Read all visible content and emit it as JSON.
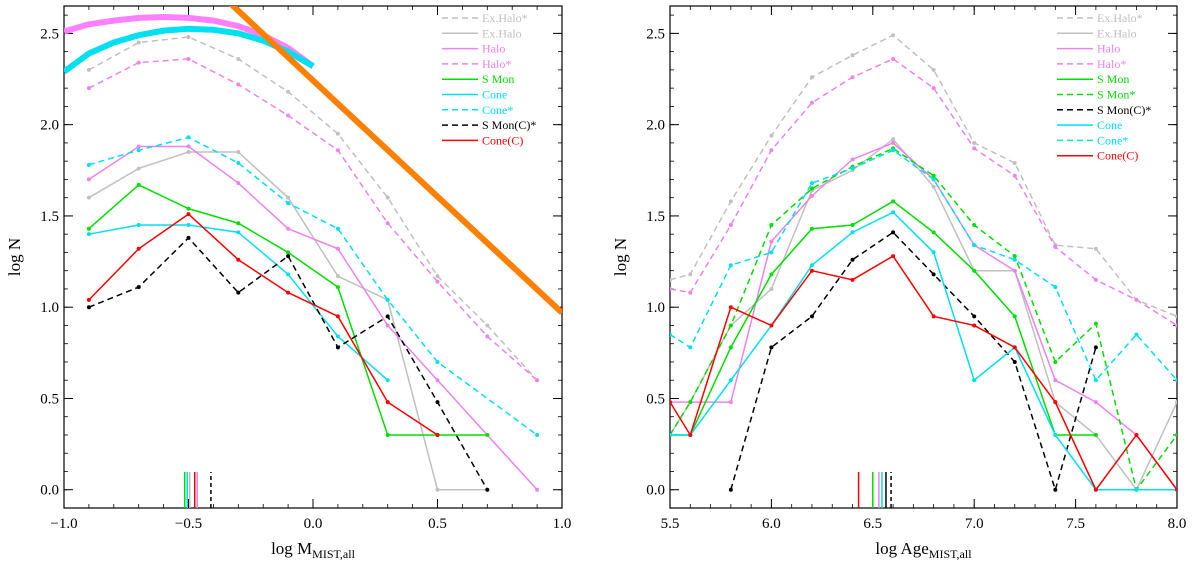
{
  "chart_data": [
    {
      "type": "line",
      "xlabel": "log M",
      "xlabel_sub": "MIST,all",
      "ylabel": "log N",
      "xlim": [
        -1.0,
        1.0
      ],
      "ylim": [
        -0.1,
        2.65
      ],
      "x_ticks": [
        -1.0,
        -0.5,
        0.0,
        0.5,
        1.0
      ],
      "x_tick_labels": [
        "−1.0",
        "−0.5",
        "0.0",
        "0.5",
        "1.0"
      ],
      "y_ticks": [
        0.0,
        0.5,
        1.0,
        1.5,
        2.0,
        2.5
      ],
      "y_tick_labels": [
        "0.0",
        "0.5",
        "1.0",
        "1.5",
        "2.0",
        "2.5"
      ],
      "legend_position": "top-right",
      "series": [
        {
          "name": "Ex.Halo*",
          "color": "#c0c0c0",
          "dash": true,
          "x": [
            -0.9,
            -0.7,
            -0.5,
            -0.3,
            -0.1,
            0.1,
            0.3,
            0.5,
            0.7,
            0.9
          ],
          "y": [
            2.3,
            2.45,
            2.48,
            2.36,
            2.18,
            1.95,
            1.6,
            1.17,
            0.9,
            0.6
          ]
        },
        {
          "name": "Ex.Halo",
          "color": "#c0c0c0",
          "dash": false,
          "x": [
            -0.9,
            -0.7,
            -0.5,
            -0.3,
            -0.1,
            0.1,
            0.3,
            0.5,
            0.7
          ],
          "y": [
            1.6,
            1.76,
            1.85,
            1.85,
            1.6,
            1.17,
            1.04,
            0.0,
            0.0
          ]
        },
        {
          "name": "Halo",
          "color": "#ee82ee",
          "dash": false,
          "x": [
            -0.9,
            -0.7,
            -0.5,
            -0.3,
            -0.1,
            0.1,
            0.3,
            0.5,
            0.7,
            0.9
          ],
          "y": [
            1.7,
            1.88,
            1.88,
            1.68,
            1.43,
            1.32,
            0.9,
            0.6,
            0.3,
            0.0
          ]
        },
        {
          "name": "Halo*",
          "color": "#ee82ee",
          "dash": true,
          "x": [
            -0.9,
            -0.7,
            -0.5,
            -0.3,
            -0.1,
            0.1,
            0.3,
            0.5,
            0.7,
            0.9
          ],
          "y": [
            2.2,
            2.34,
            2.36,
            2.22,
            2.05,
            1.86,
            1.46,
            1.14,
            0.84,
            0.6
          ]
        },
        {
          "name": "S Mon",
          "color": "#00e000",
          "dash": false,
          "x": [
            -0.9,
            -0.7,
            -0.5,
            -0.3,
            -0.1,
            0.1,
            0.3,
            0.5,
            0.7
          ],
          "y": [
            1.43,
            1.67,
            1.54,
            1.46,
            1.3,
            1.11,
            0.3,
            0.3,
            0.3
          ]
        },
        {
          "name": "Cone",
          "color": "#00e0f0",
          "dash": false,
          "x": [
            -0.9,
            -0.7,
            -0.5,
            -0.3,
            -0.1,
            0.1,
            0.3
          ],
          "y": [
            1.4,
            1.45,
            1.45,
            1.41,
            1.18,
            0.84,
            0.6
          ]
        },
        {
          "name": "Cone*",
          "color": "#00e0f0",
          "dash": true,
          "x": [
            -0.9,
            -0.7,
            -0.5,
            -0.3,
            -0.1,
            0.1,
            0.3,
            0.5,
            0.9
          ],
          "y": [
            1.78,
            1.86,
            1.93,
            1.79,
            1.57,
            1.43,
            1.04,
            0.7,
            0.3
          ]
        },
        {
          "name": "S Mon(C)*",
          "color": "#000000",
          "dash": true,
          "x": [
            -0.9,
            -0.7,
            -0.5,
            -0.3,
            -0.1,
            0.1,
            0.3,
            0.5,
            0.7
          ],
          "y": [
            1.0,
            1.11,
            1.38,
            1.08,
            1.28,
            0.78,
            0.95,
            0.48,
            0.0
          ]
        },
        {
          "name": "Cone(C)",
          "color": "#ff0000",
          "dash": false,
          "x": [
            -0.9,
            -0.7,
            -0.5,
            -0.3,
            -0.1,
            0.1,
            0.3,
            0.5
          ],
          "y": [
            1.04,
            1.32,
            1.51,
            1.26,
            1.08,
            0.95,
            0.48,
            0.3
          ]
        }
      ],
      "fits": [
        {
          "color": "#ff80ff",
          "x": [
            -1.0,
            -0.9,
            -0.8,
            -0.7,
            -0.6,
            -0.5,
            -0.4,
            -0.3,
            -0.2,
            -0.1,
            0.0
          ],
          "y": [
            2.51,
            2.55,
            2.57,
            2.585,
            2.59,
            2.585,
            2.57,
            2.54,
            2.49,
            2.42,
            2.32
          ]
        },
        {
          "color": "#00e0f0",
          "x": [
            -1.0,
            -0.9,
            -0.8,
            -0.7,
            -0.6,
            -0.5,
            -0.4,
            -0.3,
            -0.2,
            -0.1,
            0.0
          ],
          "y": [
            2.29,
            2.39,
            2.45,
            2.49,
            2.515,
            2.525,
            2.52,
            2.5,
            2.46,
            2.4,
            2.32
          ]
        },
        {
          "color": "#ff8000",
          "x": [
            -0.36,
            1.0
          ],
          "y": [
            2.7,
            0.97
          ]
        }
      ],
      "markers": [
        {
          "x": -0.515,
          "color": "#00e000",
          "dash": false
        },
        {
          "x": -0.505,
          "color": "#00e0f0",
          "dash": false
        },
        {
          "x": -0.495,
          "color": "#c0c0c0",
          "dash": false
        },
        {
          "x": -0.475,
          "color": "#ff0000",
          "dash": false
        },
        {
          "x": -0.465,
          "color": "#ee82ee",
          "dash": false
        },
        {
          "x": -0.41,
          "color": "#000000",
          "dash": true
        }
      ]
    },
    {
      "type": "line",
      "xlabel": "log Age",
      "xlabel_sub": "MIST,all",
      "ylabel": "log N",
      "xlim": [
        5.5,
        8.0
      ],
      "ylim": [
        -0.1,
        2.65
      ],
      "x_ticks": [
        5.5,
        6.0,
        6.5,
        7.0,
        7.5,
        8.0
      ],
      "x_tick_labels": [
        "5.5",
        "6.0",
        "6.5",
        "7.0",
        "7.5",
        "8.0"
      ],
      "y_ticks": [
        0.0,
        0.5,
        1.0,
        1.5,
        2.0,
        2.5
      ],
      "y_tick_labels": [
        "0.0",
        "0.5",
        "1.0",
        "1.5",
        "2.0",
        "2.5"
      ],
      "legend_position": "top-right",
      "series": [
        {
          "name": "Ex.Halo*",
          "color": "#c0c0c0",
          "dash": true,
          "x": [
            5.5,
            5.6,
            5.8,
            6.0,
            6.2,
            6.4,
            6.6,
            6.8,
            7.0,
            7.2,
            7.4,
            7.6,
            7.8,
            8.0
          ],
          "y": [
            1.15,
            1.18,
            1.58,
            1.94,
            2.26,
            2.38,
            2.49,
            2.3,
            1.9,
            1.79,
            1.34,
            1.32,
            1.04,
            0.95
          ]
        },
        {
          "name": "Ex.Halo",
          "color": "#c0c0c0",
          "dash": false,
          "x": [
            5.5,
            5.6,
            5.8,
            6.0,
            6.2,
            6.4,
            6.6,
            6.8,
            7.0,
            7.2,
            7.4,
            7.6,
            7.8,
            8.0
          ],
          "y": [
            0.3,
            0.48,
            0.9,
            1.1,
            1.64,
            1.75,
            1.92,
            1.66,
            1.2,
            1.2,
            0.48,
            0.3,
            0.0,
            0.48
          ]
        },
        {
          "name": "Halo",
          "color": "#ee82ee",
          "dash": false,
          "x": [
            5.5,
            5.6,
            5.8,
            6.0,
            6.2,
            6.4,
            6.6,
            6.8,
            7.0,
            7.2,
            7.4,
            7.6,
            7.8,
            8.0
          ],
          "y": [
            0.48,
            0.48,
            0.48,
            1.36,
            1.61,
            1.81,
            1.9,
            1.7,
            1.34,
            1.2,
            0.6,
            0.48,
            0.3,
            0.0
          ]
        },
        {
          "name": "Halo*",
          "color": "#ee82ee",
          "dash": true,
          "x": [
            5.5,
            5.6,
            5.8,
            6.0,
            6.2,
            6.4,
            6.6,
            6.8,
            7.0,
            7.2,
            7.4,
            7.6,
            7.8,
            8.0
          ],
          "y": [
            1.1,
            1.08,
            1.45,
            1.86,
            2.12,
            2.26,
            2.36,
            2.2,
            1.87,
            1.72,
            1.33,
            1.15,
            1.04,
            0.9
          ]
        },
        {
          "name": "S Mon",
          "color": "#00e000",
          "dash": false,
          "x": [
            5.5,
            5.6,
            5.8,
            6.0,
            6.2,
            6.4,
            6.6,
            6.8,
            7.0,
            7.2,
            7.4,
            7.6
          ],
          "y": [
            0.3,
            0.3,
            0.78,
            1.18,
            1.43,
            1.45,
            1.58,
            1.41,
            1.2,
            0.95,
            0.3,
            0.3
          ]
        },
        {
          "name": "S Mon*",
          "color": "#00e000",
          "dash": true,
          "x": [
            5.5,
            5.6,
            5.8,
            6.0,
            6.2,
            6.4,
            6.6,
            6.8,
            7.0,
            7.2,
            7.4,
            7.6,
            7.8,
            8.0
          ],
          "y": [
            0.3,
            0.48,
            0.9,
            1.45,
            1.65,
            1.77,
            1.87,
            1.72,
            1.45,
            1.28,
            0.7,
            0.91,
            0.0,
            0.3
          ]
        },
        {
          "name": "S Mon(C)*",
          "color": "#000000",
          "dash": true,
          "x": [
            5.8,
            6.0,
            6.2,
            6.4,
            6.6,
            6.8,
            7.0,
            7.2,
            7.4,
            7.6
          ],
          "y": [
            0.0,
            0.78,
            0.95,
            1.26,
            1.41,
            1.18,
            0.95,
            0.7,
            0.0,
            0.78
          ]
        },
        {
          "name": "Cone",
          "color": "#00e0f0",
          "dash": false,
          "x": [
            5.5,
            5.6,
            5.8,
            6.0,
            6.2,
            6.4,
            6.6,
            6.8,
            7.0,
            7.2,
            7.4,
            7.6,
            7.8,
            8.0
          ],
          "y": [
            0.3,
            0.3,
            0.6,
            0.9,
            1.23,
            1.41,
            1.52,
            1.3,
            0.6,
            0.78,
            0.3,
            0.0,
            0.0,
            0.0
          ]
        },
        {
          "name": "Cone*",
          "color": "#00e0f0",
          "dash": true,
          "x": [
            5.5,
            5.6,
            5.8,
            6.0,
            6.2,
            6.4,
            6.6,
            6.8,
            7.0,
            7.2,
            7.4,
            7.6,
            7.8,
            8.0
          ],
          "y": [
            0.85,
            0.78,
            1.23,
            1.3,
            1.68,
            1.76,
            1.86,
            1.7,
            1.34,
            1.26,
            1.11,
            0.6,
            0.85,
            0.6
          ]
        },
        {
          "name": "Cone(C)",
          "color": "#ff0000",
          "dash": false,
          "x": [
            5.5,
            5.6,
            5.8,
            6.0,
            6.2,
            6.4,
            6.6,
            6.8,
            7.0,
            7.2,
            7.4,
            7.6,
            7.8,
            8.0
          ],
          "y": [
            0.48,
            0.3,
            1.0,
            0.9,
            1.2,
            1.15,
            1.28,
            0.95,
            0.9,
            0.78,
            0.48,
            0.0,
            0.3,
            0.0
          ]
        }
      ],
      "markers": [
        {
          "x": 6.43,
          "color": "#ff0000",
          "dash": false
        },
        {
          "x": 6.5,
          "color": "#00e000",
          "dash": false
        },
        {
          "x": 6.53,
          "color": "#ee82ee",
          "dash": false
        },
        {
          "x": 6.545,
          "color": "#00e0f0",
          "dash": false
        },
        {
          "x": 6.565,
          "color": "#000000",
          "dash": false
        },
        {
          "x": 6.59,
          "color": "#000000",
          "dash": true
        }
      ]
    }
  ]
}
